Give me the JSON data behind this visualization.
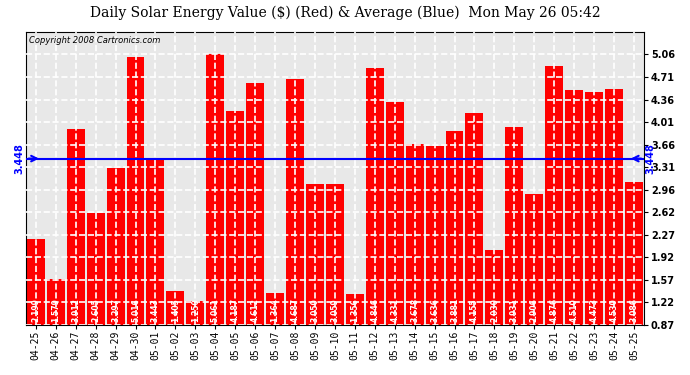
{
  "title": "Daily Solar Energy Value ($) (Red) & Average (Blue)  Mon May 26 05:42",
  "copyright": "Copyright 2008 Cartronics.com",
  "average": 3.448,
  "bar_color": "#FF0000",
  "avg_line_color": "#0000FF",
  "background_color": "#FFFFFF",
  "plot_bg_color": "#FFFFFF",
  "grid_color": "#BBBBBB",
  "categories": [
    "04-25",
    "04-26",
    "04-27",
    "04-28",
    "04-29",
    "04-30",
    "05-01",
    "05-02",
    "05-03",
    "05-04",
    "05-05",
    "05-06",
    "05-07",
    "05-08",
    "05-09",
    "05-10",
    "05-11",
    "05-12",
    "05-13",
    "05-14",
    "05-15",
    "05-16",
    "05-17",
    "05-18",
    "05-19",
    "05-20",
    "05-21",
    "05-22",
    "05-23",
    "05-24",
    "05-25"
  ],
  "values": [
    2.199,
    1.579,
    3.912,
    2.605,
    3.297,
    5.016,
    3.443,
    1.405,
    1.25,
    5.061,
    4.187,
    4.612,
    1.364,
    4.687,
    3.05,
    3.059,
    1.356,
    4.846,
    4.331,
    3.678,
    3.636,
    3.881,
    4.155,
    2.03,
    3.931,
    2.906,
    4.876,
    4.51,
    4.473,
    4.53,
    3.086
  ],
  "ymin": 0.87,
  "ymax": 5.41,
  "yticks": [
    0.87,
    1.22,
    1.57,
    1.92,
    2.27,
    2.62,
    2.96,
    3.31,
    3.66,
    4.01,
    4.36,
    4.71,
    5.06
  ],
  "title_fontsize": 10,
  "copyright_fontsize": 6,
  "tick_fontsize": 7,
  "bar_value_fontsize": 5.5
}
